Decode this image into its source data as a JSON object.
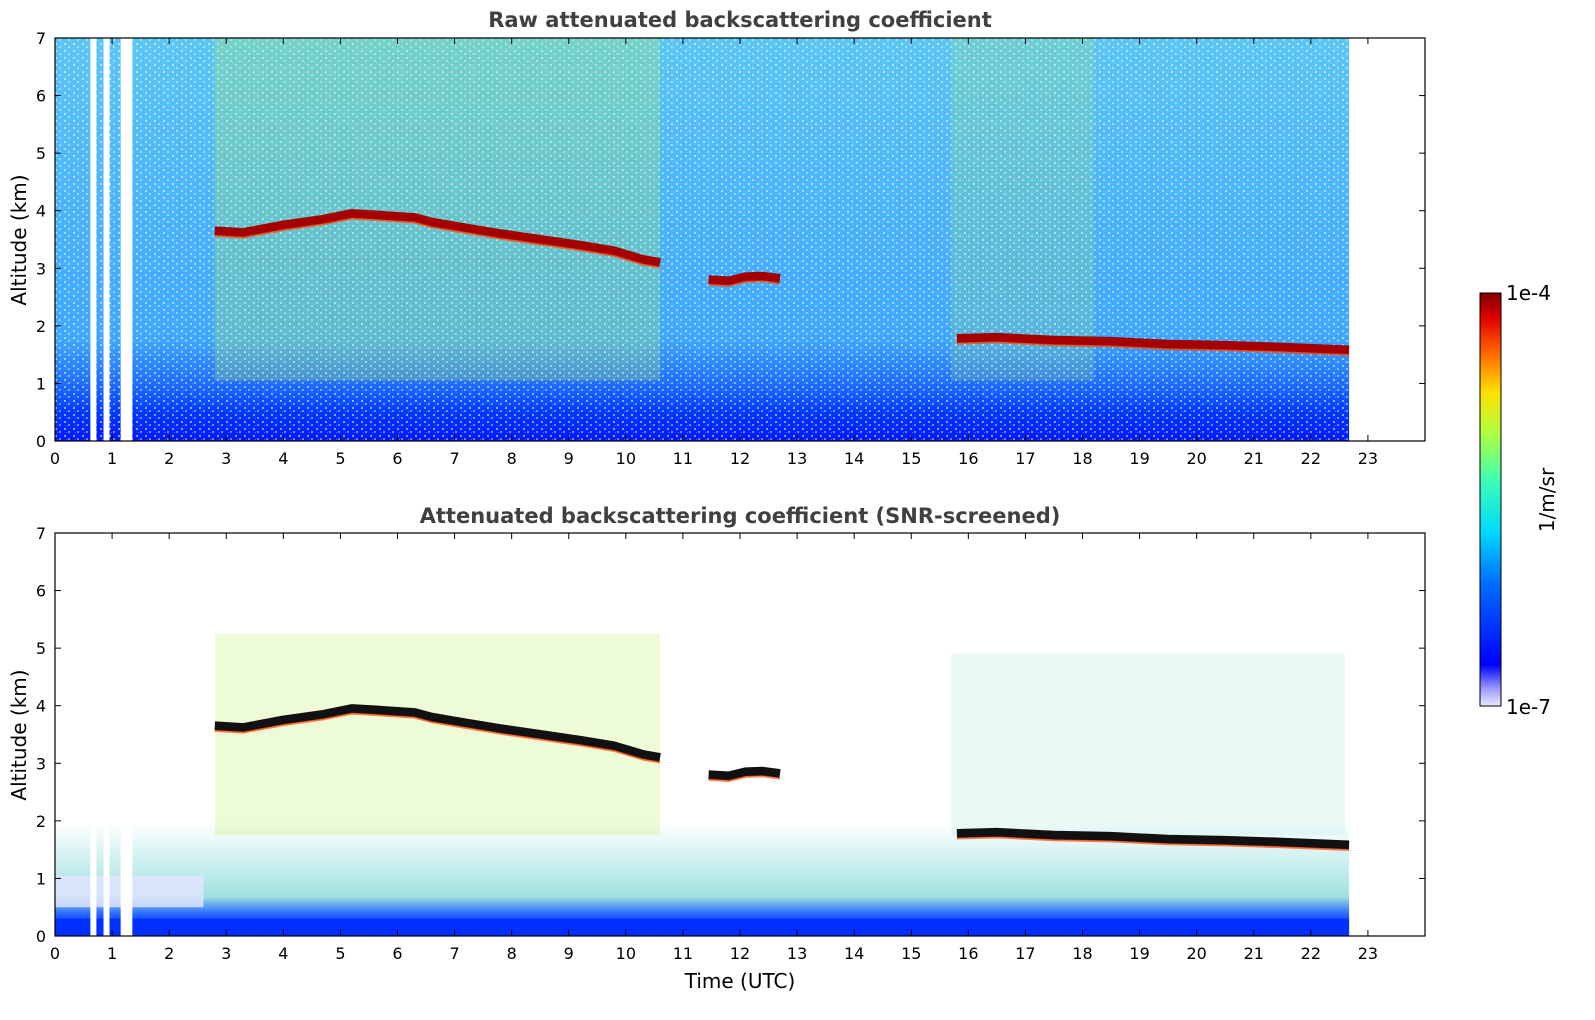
{
  "figure": {
    "colorbar": {
      "max_label": "1e-4",
      "min_label": "1e-7",
      "unit_label": "1/m/sr",
      "colormap": "jet",
      "scale": "log"
    }
  },
  "chart_data": [
    {
      "type": "heatmap",
      "title": "Raw attenuated backscattering coefficient",
      "xlabel": "",
      "ylabel": "Altitude (km)",
      "xlim": [
        0,
        24
      ],
      "ylim": [
        0,
        7
      ],
      "xticks": [
        "0",
        "1",
        "2",
        "3",
        "4",
        "5",
        "6",
        "7",
        "8",
        "9",
        "10",
        "11",
        "12",
        "13",
        "14",
        "15",
        "16",
        "17",
        "18",
        "19",
        "20",
        "21",
        "22",
        "23"
      ],
      "yticks": [
        "0",
        "1",
        "2",
        "3",
        "4",
        "5",
        "6",
        "7"
      ],
      "data_end_time": 22.67,
      "cloud_layers": [
        {
          "t": [
            2.8,
            3.3,
            4.0,
            4.7,
            5.2,
            5.7,
            6.3,
            6.6,
            7.2,
            7.8,
            8.5,
            9.2,
            9.8,
            10.3,
            10.6
          ],
          "alt": [
            3.65,
            3.62,
            3.75,
            3.85,
            3.95,
            3.92,
            3.88,
            3.8,
            3.7,
            3.6,
            3.5,
            3.4,
            3.3,
            3.15,
            3.1
          ]
        },
        {
          "t": [
            11.45,
            11.8,
            12.1,
            12.4,
            12.7
          ],
          "alt": [
            2.8,
            2.78,
            2.85,
            2.86,
            2.82
          ]
        },
        {
          "t": [
            15.8,
            16.5,
            17.5,
            18.5,
            19.5,
            20.5,
            21.5,
            22.67
          ],
          "alt": [
            1.78,
            1.8,
            1.75,
            1.73,
            1.68,
            1.66,
            1.63,
            1.58
          ]
        }
      ],
      "data_gaps_utc": [
        0.62,
        0.85,
        1.15,
        1.25
      ]
    },
    {
      "type": "heatmap",
      "title": "Attenuated backscattering coefficient (SNR-screened)",
      "xlabel": "Time (UTC)",
      "ylabel": "Altitude (km)",
      "xlim": [
        0,
        24
      ],
      "ylim": [
        0,
        7
      ],
      "xticks": [
        "0",
        "1",
        "2",
        "3",
        "4",
        "5",
        "6",
        "7",
        "8",
        "9",
        "10",
        "11",
        "12",
        "13",
        "14",
        "15",
        "16",
        "17",
        "18",
        "19",
        "20",
        "21",
        "22",
        "23"
      ],
      "yticks": [
        "0",
        "1",
        "2",
        "3",
        "4",
        "5",
        "6",
        "7"
      ],
      "data_end_time": 22.67
    }
  ]
}
